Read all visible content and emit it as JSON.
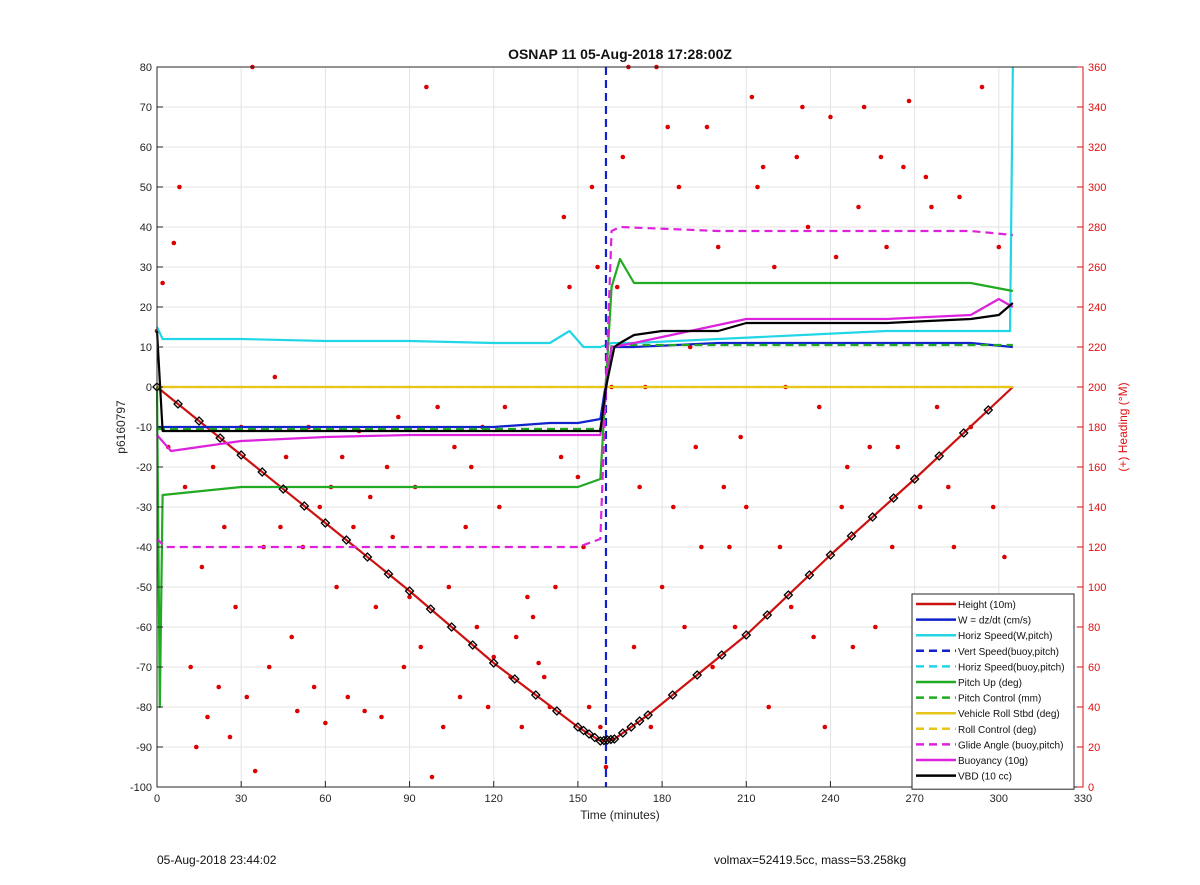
{
  "chart_data": {
    "type": "line",
    "title": "OSNAP 11 05-Aug-2018 17:28:00Z",
    "xlabel": "Time (minutes)",
    "ylabel_left": "p6160797",
    "ylabel_right": "(+) Heading (°M)",
    "xlim": [
      0,
      330
    ],
    "ylim_left": [
      -100,
      80
    ],
    "ylim_right": [
      0,
      360
    ],
    "x_ticks": [
      0,
      30,
      60,
      90,
      120,
      150,
      180,
      210,
      240,
      270,
      300,
      330
    ],
    "y_ticks_left": [
      -100,
      -90,
      -80,
      -70,
      -60,
      -50,
      -40,
      -30,
      -20,
      -10,
      0,
      10,
      20,
      30,
      40,
      50,
      60,
      70,
      80
    ],
    "y_ticks_right": [
      0,
      20,
      40,
      60,
      80,
      100,
      120,
      140,
      160,
      180,
      200,
      220,
      240,
      260,
      280,
      300,
      320,
      340,
      360
    ],
    "grid": true,
    "legend_position": "bottom-right",
    "series": [
      {
        "name": "Height (10m)",
        "color": "#cc1111",
        "style": "solid",
        "x": [
          0,
          30,
          60,
          90,
          120,
          150,
          158,
          163,
          175,
          210,
          240,
          270,
          305
        ],
        "y": [
          0,
          -17,
          -34,
          -51,
          -69,
          -85,
          -88.5,
          -88,
          -82,
          -62,
          -42,
          -23,
          0
        ]
      },
      {
        "name": "W = dz/dt (cm/s)",
        "color": "#1122cc",
        "style": "solid",
        "x": [
          0,
          2,
          30,
          60,
          90,
          120,
          140,
          150,
          158,
          162,
          170,
          200,
          230,
          260,
          290,
          305
        ],
        "y": [
          -10,
          -10,
          -10,
          -10,
          -10,
          -10,
          -9,
          -9,
          -8,
          10,
          10,
          11,
          11,
          11,
          11,
          10
        ]
      },
      {
        "name": "Horiz Speed(W,pitch)",
        "color": "#22d6e6",
        "style": "solid",
        "x": [
          0,
          2,
          30,
          60,
          90,
          120,
          140,
          147,
          152,
          158,
          162,
          170,
          200,
          230,
          260,
          290,
          304,
          305
        ],
        "y": [
          15,
          12,
          12,
          11.5,
          11.5,
          11,
          11,
          14,
          10,
          10,
          11,
          11,
          12,
          13,
          14,
          14,
          14,
          80
        ]
      },
      {
        "name": "Vert Speed(buoy,pitch)",
        "color": "#1122cc",
        "style": "dashed",
        "x": [
          160,
          160
        ],
        "y": [
          80,
          -100
        ]
      },
      {
        "name": "Horiz Speed(buoy,pitch)",
        "color": "#22d6e6",
        "style": "dashed",
        "x": [],
        "y": []
      },
      {
        "name": "Pitch Up (deg)",
        "color": "#22aa22",
        "style": "solid",
        "x": [
          0,
          1,
          2,
          30,
          60,
          90,
          120,
          150,
          158,
          162,
          165,
          170,
          200,
          230,
          260,
          290,
          305
        ],
        "y": [
          0,
          -80,
          -27,
          -25,
          -25,
          -25,
          -25,
          -25,
          -23,
          25,
          32,
          26,
          26,
          26,
          26,
          26,
          24
        ]
      },
      {
        "name": "Pitch Control (mm)",
        "color": "#22aa22",
        "style": "dashed",
        "x": [
          0,
          158,
          162,
          305
        ],
        "y": [
          -10.5,
          -10.5,
          10.5,
          10.5
        ]
      },
      {
        "name": "Vehicle Roll Stbd (deg)",
        "color": "#e6c619",
        "style": "solid",
        "x": [
          0,
          158,
          162,
          305
        ],
        "y": [
          0,
          0,
          0,
          0
        ]
      },
      {
        "name": "Roll Control (deg)",
        "color": "#e6c619",
        "style": "dashed",
        "x": [
          0,
          158,
          162,
          305
        ],
        "y": [
          0,
          0,
          0,
          0
        ]
      },
      {
        "name": "Glide Angle (buoy,pitch)",
        "color": "#dd22dd",
        "style": "dashed",
        "x": [
          0,
          3,
          30,
          60,
          90,
          120,
          150,
          158,
          162,
          165,
          200,
          230,
          260,
          290,
          305
        ],
        "y": [
          -38,
          -40,
          -40,
          -40,
          -40,
          -40,
          -40,
          -38,
          39,
          40,
          39,
          39,
          39,
          39,
          38
        ]
      },
      {
        "name": "Buoyancy (10g)",
        "color": "#dd22dd",
        "style": "solid",
        "x": [
          0,
          5,
          15,
          30,
          60,
          90,
          120,
          150,
          158,
          162,
          170,
          190,
          210,
          230,
          260,
          290,
          300,
          305
        ],
        "y": [
          -12,
          -16,
          -15,
          -13.5,
          -12.5,
          -12,
          -12,
          -12,
          -12,
          10,
          11,
          14,
          17,
          17,
          17,
          18,
          22,
          20
        ]
      },
      {
        "name": "VBD (10 cc)",
        "color": "#000000",
        "style": "solid",
        "x": [
          0,
          2,
          30,
          60,
          90,
          120,
          150,
          158,
          160,
          163,
          165,
          170,
          180,
          200,
          210,
          230,
          260,
          290,
          300,
          305
        ],
        "y": [
          14,
          -11,
          -11,
          -11,
          -11,
          -11,
          -11,
          -11,
          0,
          10,
          11,
          13,
          14,
          14,
          16,
          16,
          16,
          17,
          18,
          21
        ]
      }
    ],
    "heading_scatter": {
      "name": "(+) Heading (°M)",
      "color": "#dd0000",
      "axis": "right",
      "points": [
        [
          0,
          228
        ],
        [
          2,
          252
        ],
        [
          4,
          170
        ],
        [
          6,
          272
        ],
        [
          8,
          300
        ],
        [
          10,
          150
        ],
        [
          12,
          60
        ],
        [
          14,
          20
        ],
        [
          16,
          110
        ],
        [
          18,
          35
        ],
        [
          20,
          160
        ],
        [
          22,
          50
        ],
        [
          24,
          130
        ],
        [
          26,
          25
        ],
        [
          28,
          90
        ],
        [
          30,
          180
        ],
        [
          32,
          45
        ],
        [
          34,
          360
        ],
        [
          35,
          8
        ],
        [
          38,
          120
        ],
        [
          40,
          60
        ],
        [
          42,
          205
        ],
        [
          44,
          130
        ],
        [
          46,
          165
        ],
        [
          48,
          75
        ],
        [
          50,
          38
        ],
        [
          52,
          120
        ],
        [
          54,
          180
        ],
        [
          56,
          50
        ],
        [
          58,
          140
        ],
        [
          60,
          32
        ],
        [
          62,
          150
        ],
        [
          64,
          100
        ],
        [
          66,
          165
        ],
        [
          68,
          45
        ],
        [
          70,
          130
        ],
        [
          72,
          178
        ],
        [
          74,
          38
        ],
        [
          76,
          145
        ],
        [
          78,
          90
        ],
        [
          80,
          35
        ],
        [
          82,
          160
        ],
        [
          84,
          125
        ],
        [
          86,
          185
        ],
        [
          88,
          60
        ],
        [
          90,
          95
        ],
        [
          92,
          150
        ],
        [
          94,
          70
        ],
        [
          96,
          350
        ],
        [
          98,
          5
        ],
        [
          100,
          190
        ],
        [
          102,
          30
        ],
        [
          104,
          100
        ],
        [
          106,
          170
        ],
        [
          108,
          45
        ],
        [
          110,
          130
        ],
        [
          112,
          160
        ],
        [
          114,
          80
        ],
        [
          116,
          180
        ],
        [
          118,
          40
        ],
        [
          120,
          65
        ],
        [
          122,
          140
        ],
        [
          124,
          190
        ],
        [
          126,
          55
        ],
        [
          128,
          75
        ],
        [
          130,
          30
        ],
        [
          132,
          95
        ],
        [
          134,
          85
        ],
        [
          136,
          62
        ],
        [
          138,
          55
        ],
        [
          140,
          40
        ],
        [
          142,
          100
        ],
        [
          144,
          165
        ],
        [
          145,
          285
        ],
        [
          147,
          250
        ],
        [
          150,
          155
        ],
        [
          152,
          120
        ],
        [
          154,
          40
        ],
        [
          155,
          300
        ],
        [
          157,
          260
        ],
        [
          158,
          30
        ],
        [
          160,
          10
        ],
        [
          162,
          200
        ],
        [
          164,
          250
        ],
        [
          166,
          315
        ],
        [
          168,
          360
        ],
        [
          170,
          70
        ],
        [
          172,
          150
        ],
        [
          174,
          200
        ],
        [
          176,
          30
        ],
        [
          178,
          360
        ],
        [
          180,
          100
        ],
        [
          182,
          330
        ],
        [
          184,
          140
        ],
        [
          186,
          300
        ],
        [
          188,
          80
        ],
        [
          190,
          220
        ],
        [
          192,
          170
        ],
        [
          194,
          120
        ],
        [
          196,
          330
        ],
        [
          198,
          60
        ],
        [
          200,
          270
        ],
        [
          202,
          150
        ],
        [
          204,
          120
        ],
        [
          206,
          80
        ],
        [
          208,
          175
        ],
        [
          210,
          140
        ],
        [
          212,
          345
        ],
        [
          214,
          300
        ],
        [
          216,
          310
        ],
        [
          218,
          40
        ],
        [
          220,
          260
        ],
        [
          222,
          120
        ],
        [
          224,
          200
        ],
        [
          226,
          90
        ],
        [
          228,
          315
        ],
        [
          230,
          340
        ],
        [
          232,
          280
        ],
        [
          234,
          75
        ],
        [
          236,
          190
        ],
        [
          238,
          30
        ],
        [
          240,
          335
        ],
        [
          242,
          265
        ],
        [
          244,
          140
        ],
        [
          246,
          160
        ],
        [
          248,
          70
        ],
        [
          250,
          290
        ],
        [
          252,
          340
        ],
        [
          254,
          170
        ],
        [
          256,
          80
        ],
        [
          258,
          315
        ],
        [
          260,
          270
        ],
        [
          262,
          120
        ],
        [
          264,
          170
        ],
        [
          266,
          310
        ],
        [
          268,
          343
        ],
        [
          270,
          80
        ],
        [
          272,
          140
        ],
        [
          274,
          305
        ],
        [
          276,
          290
        ],
        [
          278,
          190
        ],
        [
          280,
          45
        ],
        [
          282,
          150
        ],
        [
          284,
          120
        ],
        [
          286,
          295
        ],
        [
          288,
          70
        ],
        [
          290,
          180
        ],
        [
          292,
          80
        ],
        [
          294,
          350
        ],
        [
          296,
          25
        ],
        [
          298,
          140
        ],
        [
          300,
          270
        ],
        [
          302,
          115
        ]
      ]
    }
  },
  "footer": {
    "left": "05-Aug-2018 23:44:02",
    "right": "volmax=52419.5cc, mass=53.258kg"
  }
}
